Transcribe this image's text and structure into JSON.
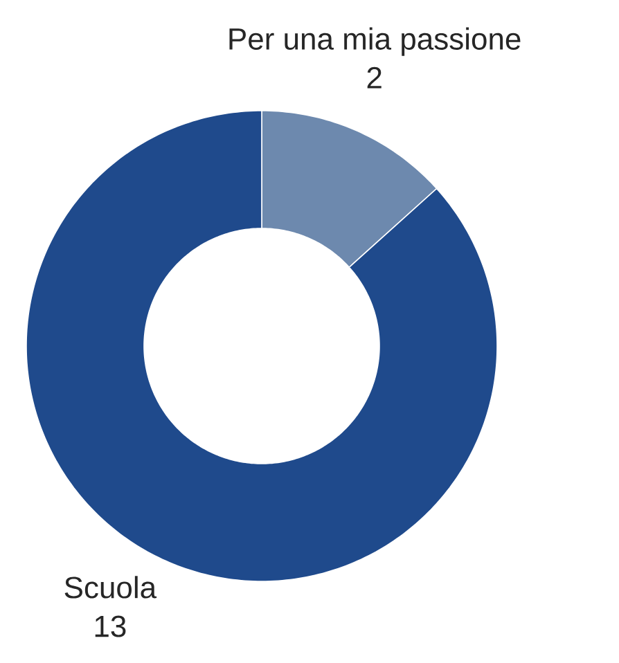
{
  "chart_data": {
    "type": "donut",
    "categories": [
      "Per una mia passione",
      "Scuola"
    ],
    "values": [
      2,
      13
    ],
    "colors": [
      "#6d89ae",
      "#1f4a8c"
    ],
    "data_labels": true
  }
}
